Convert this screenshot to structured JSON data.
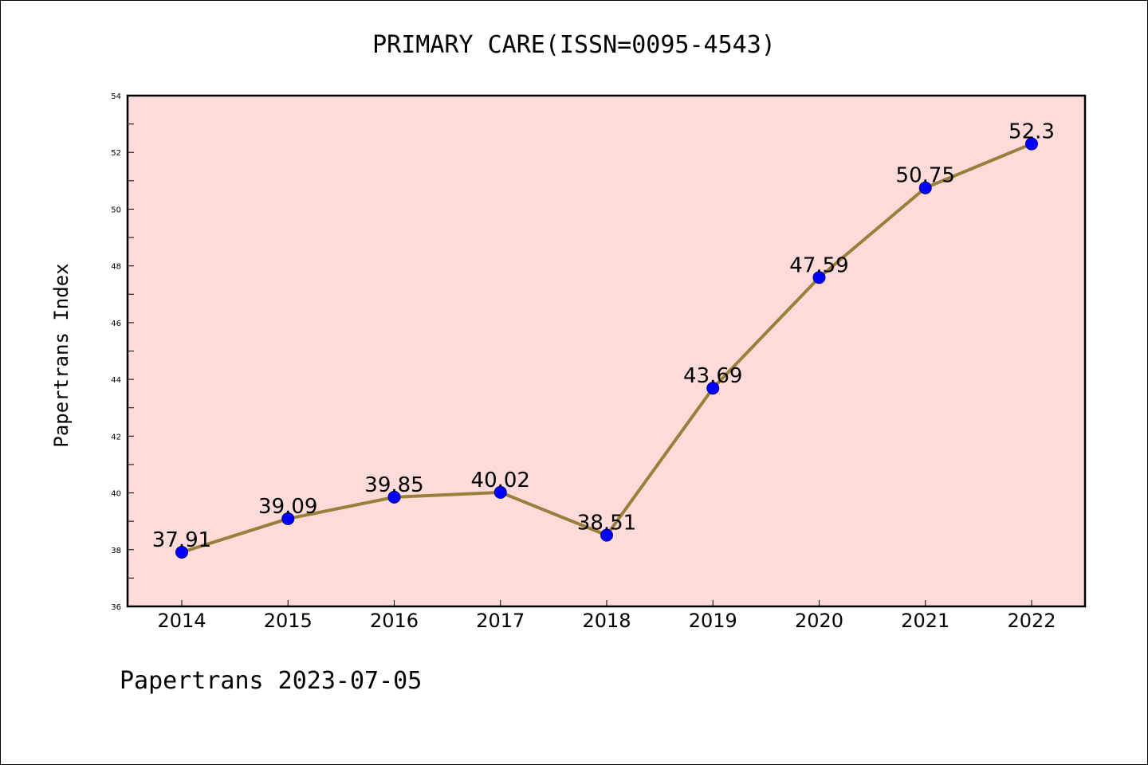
{
  "chart_data": {
    "type": "line",
    "title": "PRIMARY CARE(ISSN=0095-4543)",
    "xlabel": "",
    "ylabel": "Papertrans Index",
    "footer": "Papertrans 2023-07-05",
    "categories": [
      "2014",
      "2015",
      "2016",
      "2017",
      "2018",
      "2019",
      "2020",
      "2021",
      "2022"
    ],
    "series": [
      {
        "values": [
          37.91,
          39.09,
          39.85,
          40.02,
          38.51,
          43.69,
          47.59,
          50.75,
          52.3
        ]
      }
    ],
    "data_labels": [
      "37.91",
      "39.09",
      "39.85",
      "40.02",
      "38.51",
      "43.69",
      "47.59",
      "50.75",
      "52.3"
    ],
    "ylim": [
      36,
      54
    ],
    "yticks": [
      36,
      38,
      40,
      42,
      44,
      46,
      48,
      50,
      52,
      54
    ],
    "grid": false,
    "colors": {
      "plot_background": "#fddbd8",
      "line": "#9a7f3c",
      "marker": "#0000ff",
      "marker_edge": "#00008b"
    }
  }
}
